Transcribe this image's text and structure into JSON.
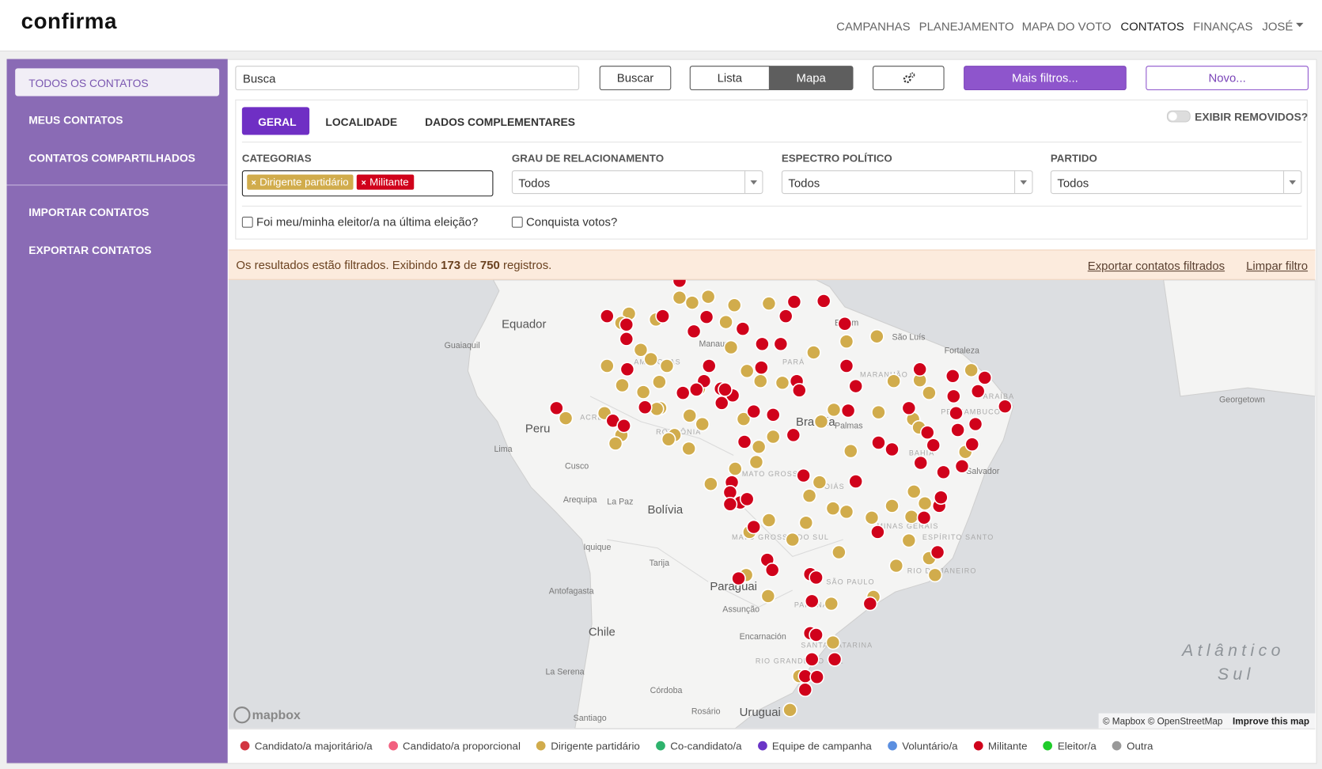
{
  "header": {
    "logo": "confirma",
    "nav": [
      "CAMPANHAS",
      "PLANEJAMENTO",
      "MAPA DO VOTO",
      "CONTATOS",
      "FINANÇAS"
    ],
    "user": "JOSÉ"
  },
  "sidebar": {
    "items": [
      "TODOS OS CONTATOS",
      "MEUS CONTATOS",
      "CONTATOS COMPARTILHADOS"
    ],
    "actions": [
      "IMPORTAR CONTATOS",
      "EXPORTAR CONTATOS"
    ]
  },
  "toolbar": {
    "search_placeholder": "Busca",
    "search_button": "Buscar",
    "view_list": "Lista",
    "view_map": "Mapa",
    "more_filters": "Mais filtros...",
    "new": "Novo..."
  },
  "filters": {
    "tabs": [
      "GERAL",
      "LOCALIDADE",
      "DADOS COMPLEMENTARES"
    ],
    "show_removed": "EXIBIR REMOVIDOS?",
    "categories_label": "CATEGORIAS",
    "categories_tags": [
      {
        "text": "Dirigente partidário",
        "color": "#d1ac4c"
      },
      {
        "text": "Militante",
        "color": "#d0021b"
      }
    ],
    "selects": [
      {
        "label": "GRAU DE RELACIONAMENTO",
        "value": "Todos"
      },
      {
        "label": "ESPECTRO POLÍTICO",
        "value": "Todos"
      },
      {
        "label": "PARTIDO",
        "value": "Todos"
      }
    ],
    "checkboxes": [
      "Foi meu/minha eleitor/a na última eleição?",
      "Conquista votos?"
    ]
  },
  "notice": {
    "prefix": "Os resultados estão filtrados. Exibindo",
    "shown": 173,
    "connector": "de",
    "total": 750,
    "suffix": "registros.",
    "export_link": "Exportar contatos filtrados",
    "clear_link": "Limpar filtro"
  },
  "map": {
    "labels": [
      "Equador",
      "Guaiaquil",
      "Peru",
      "Lima",
      "Cusco",
      "Arequipa",
      "La Paz",
      "Bolívia",
      "Iquique",
      "Tarija",
      "Antofagasta",
      "Paraguai",
      "Assunção",
      "Encarnación",
      "Chile",
      "La Serena",
      "Córdoba",
      "Rosário",
      "Santiago",
      "Uruguai",
      "Fortaleza",
      "São Luís",
      "Belém",
      "Manaus",
      "Brasília",
      "Palmas",
      "Salvador",
      "Georgetown",
      "AMAZONAS",
      "PARÁ",
      "MARANHÃO",
      "ACRE",
      "RONDÔNIA",
      "MATO GROSSO",
      "MATO GROSSO DO SUL",
      "GOIÁS",
      "MINAS GERAIS",
      "SÃO PAULO",
      "PARANÁ",
      "RIO DE JANEIRO",
      "ESPÍRITO SANTO",
      "SANTA CATARINA",
      "RIO GRANDE DO SUL",
      "BAHIA",
      "PERNAMBUCO",
      "PARAÍBA",
      "Atlântico",
      "Sul"
    ],
    "logo": "mapbox",
    "attribution": "© Mapbox © OpenStreetMap",
    "improve": "Improve this map"
  },
  "legend": [
    {
      "label": "Candidato/a majoritário/a",
      "color": "#d23641"
    },
    {
      "label": "Candidato/a proporcional",
      "color": "#f2607f"
    },
    {
      "label": "Dirigente partidário",
      "color": "#d1ac4c"
    },
    {
      "label": "Co-candidato/a",
      "color": "#2eb36d"
    },
    {
      "label": "Equipe de campanha",
      "color": "#6a35c7"
    },
    {
      "label": "Voluntário/a",
      "color": "#5b8fe0"
    },
    {
      "label": "Militante",
      "color": "#d0021b"
    },
    {
      "label": "Eleitor/a",
      "color": "#1fcc2a"
    },
    {
      "label": "Outra",
      "color": "#999999"
    }
  ]
}
